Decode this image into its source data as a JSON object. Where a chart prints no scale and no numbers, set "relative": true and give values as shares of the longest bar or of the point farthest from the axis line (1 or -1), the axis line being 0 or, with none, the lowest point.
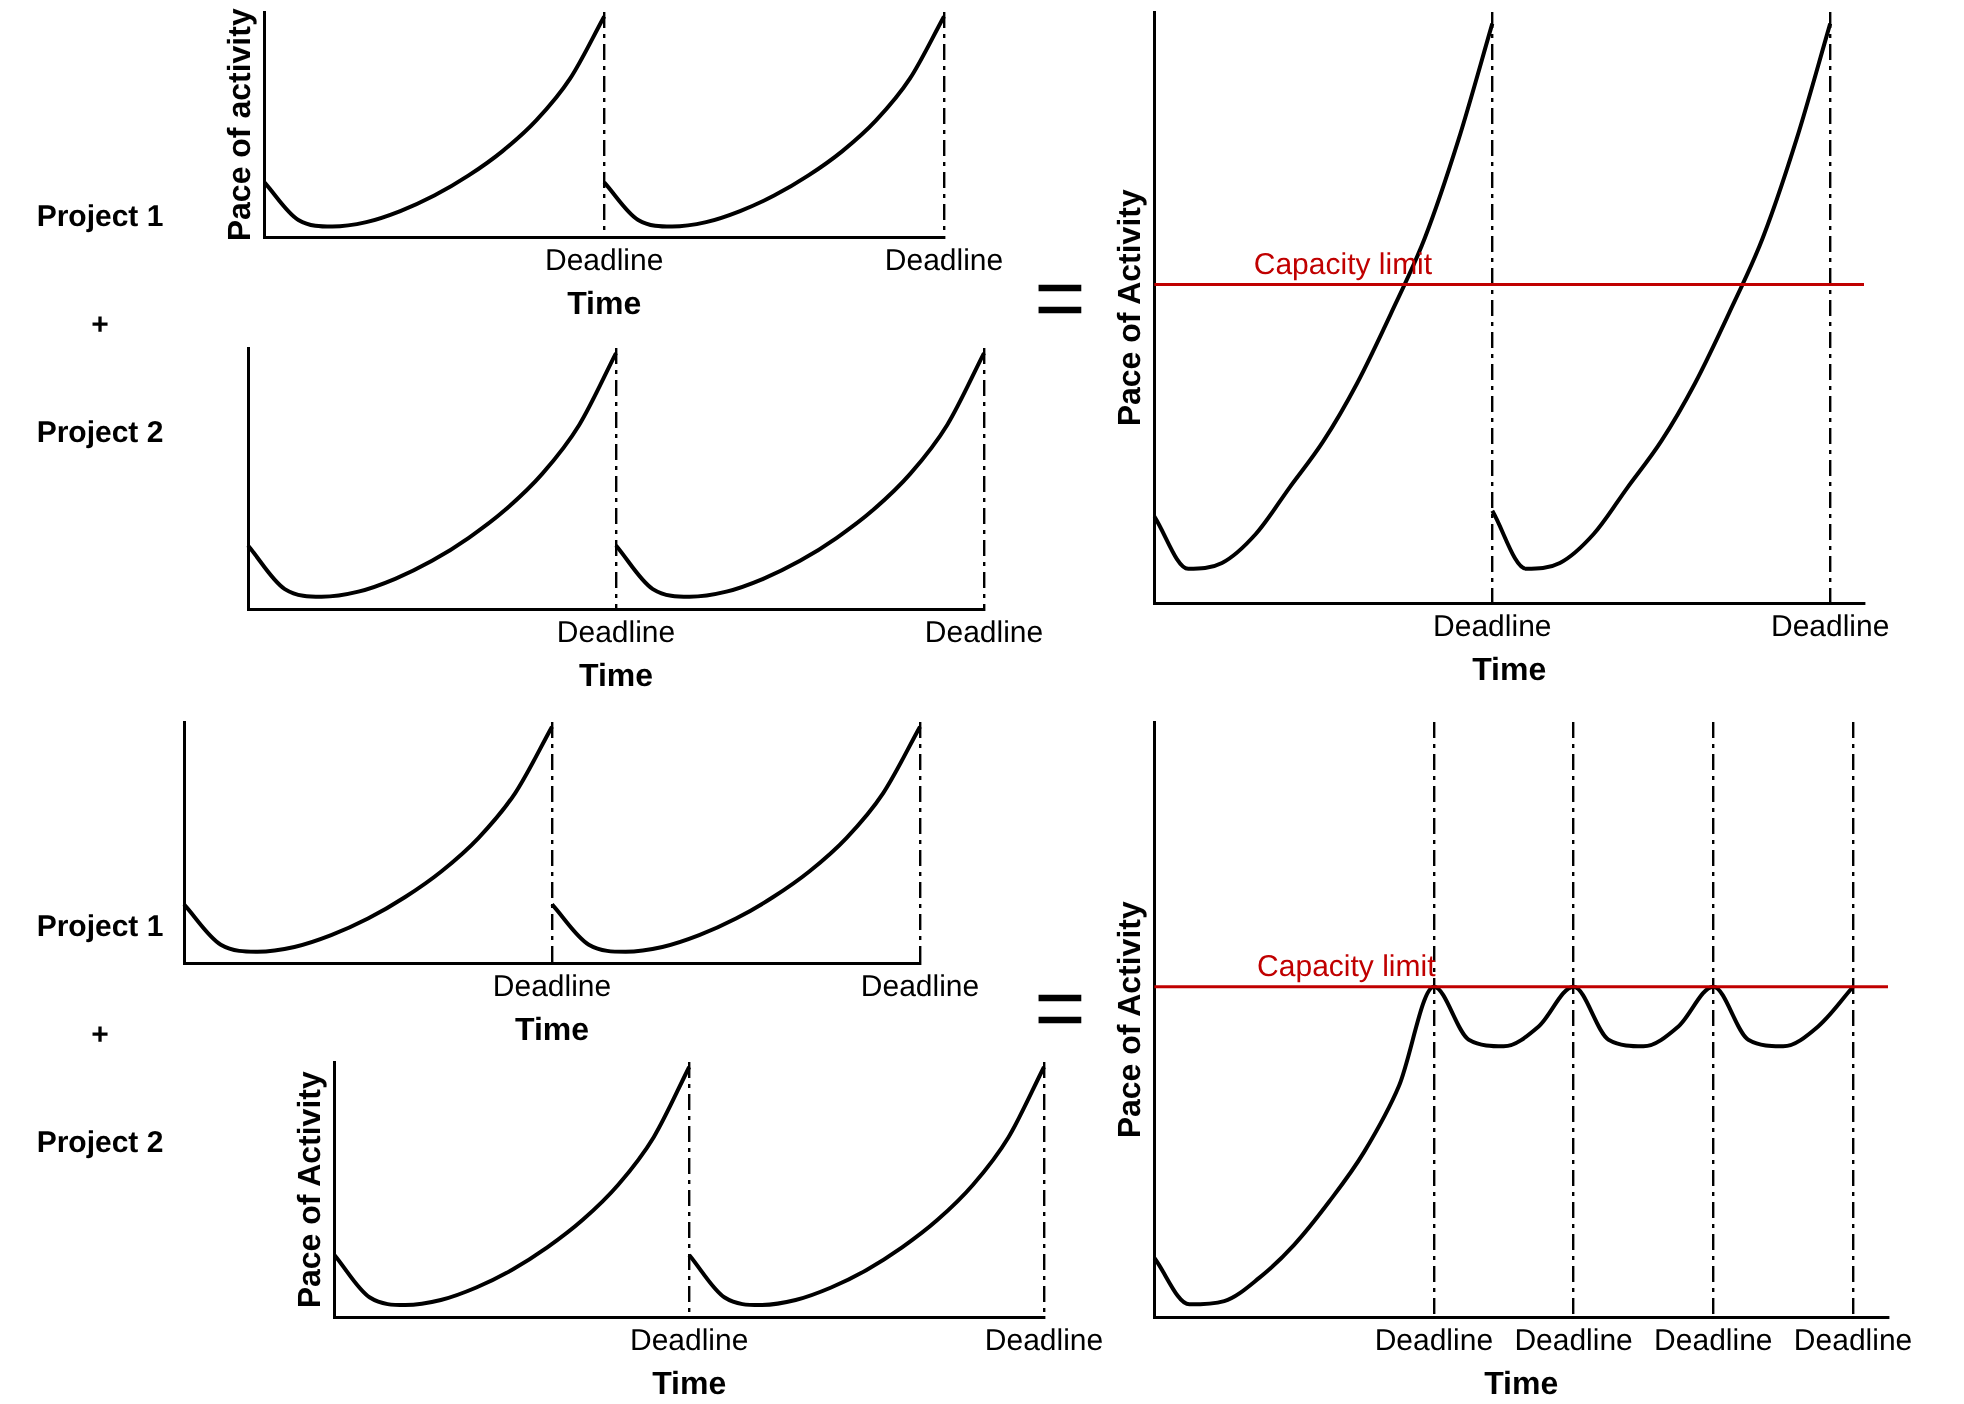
{
  "chart_data": [
    {
      "type": "other",
      "annotations": [
        "Project 1",
        "+",
        "Project 2"
      ]
    },
    {
      "type": "line",
      "relative": true,
      "ylabel": "Pace of activity",
      "xlabel": "Time",
      "legend": false,
      "grid": "x",
      "tick_labels": "x",
      "categories": [
        null,
        null,
        null,
        null,
        null,
        null,
        null,
        null,
        null,
        null,
        "Deadline",
        null,
        null,
        null,
        null,
        null,
        null,
        null,
        null,
        null,
        "Deadline"
      ],
      "series": [
        {
          "color": "#000000",
          "values": [
            0.25,
            0.08,
            0.05,
            0.07,
            0.12,
            0.19,
            0.28,
            0.39,
            0.53,
            0.72,
            1.0,
            null,
            null,
            null,
            null,
            null,
            null,
            null,
            null,
            null,
            null
          ]
        },
        {
          "color": "#000000",
          "values": [
            null,
            null,
            null,
            null,
            null,
            null,
            null,
            null,
            null,
            null,
            0.25,
            0.08,
            0.05,
            0.07,
            0.12,
            0.19,
            0.28,
            0.39,
            0.53,
            0.72,
            1.0
          ]
        }
      ]
    },
    {
      "type": "line",
      "relative": true,
      "xlabel": "Time",
      "legend": false,
      "grid": "x",
      "tick_labels": "x",
      "categories": [
        null,
        null,
        null,
        null,
        null,
        null,
        null,
        null,
        null,
        null,
        "Deadline",
        null,
        null,
        null,
        null,
        null,
        null,
        null,
        null,
        null,
        "Deadline"
      ],
      "series": [
        {
          "color": "#000000",
          "values": [
            0.25,
            0.08,
            0.05,
            0.07,
            0.12,
            0.19,
            0.28,
            0.39,
            0.53,
            0.72,
            1.0,
            null,
            null,
            null,
            null,
            null,
            null,
            null,
            null,
            null,
            null
          ]
        },
        {
          "color": "#000000",
          "values": [
            null,
            null,
            null,
            null,
            null,
            null,
            null,
            null,
            null,
            null,
            0.25,
            0.08,
            0.05,
            0.07,
            0.12,
            0.19,
            0.28,
            0.39,
            0.53,
            0.72,
            1.0
          ]
        }
      ]
    },
    {
      "type": "other",
      "annotations": [
        "="
      ]
    },
    {
      "type": "line",
      "relative": true,
      "ylabel": "Pace of Activity",
      "xlabel": "Time",
      "legend": false,
      "grid": "x",
      "tick_labels": "x",
      "ref_lines": [
        {
          "axis": "y",
          "value": 0.55,
          "label": "Capacity limit",
          "color": "#c00000"
        }
      ],
      "categories": [
        null,
        null,
        null,
        null,
        null,
        null,
        null,
        null,
        null,
        null,
        "Deadline",
        null,
        null,
        null,
        null,
        null,
        null,
        null,
        null,
        null,
        "Deadline",
        null
      ],
      "series": [
        {
          "color": "#000000",
          "values": [
            0.15,
            0.06,
            0.07,
            0.12,
            0.2,
            0.28,
            0.38,
            0.5,
            0.63,
            0.8,
            1.0,
            null,
            null,
            null,
            null,
            null,
            null,
            null,
            null,
            null,
            null,
            null
          ]
        },
        {
          "color": "#000000",
          "values": [
            null,
            null,
            null,
            null,
            null,
            null,
            null,
            null,
            null,
            null,
            0.16,
            0.06,
            0.07,
            0.12,
            0.2,
            0.28,
            0.38,
            0.5,
            0.63,
            0.8,
            1.0,
            null
          ]
        }
      ]
    },
    {
      "type": "other",
      "annotations": [
        "Project 1",
        "+",
        "Project 2"
      ]
    },
    {
      "type": "line",
      "relative": true,
      "xlabel": "Time",
      "legend": false,
      "grid": "x",
      "tick_labels": "x",
      "categories": [
        null,
        null,
        null,
        null,
        null,
        null,
        null,
        null,
        null,
        null,
        "Deadline",
        null,
        null,
        null,
        null,
        null,
        null,
        null,
        null,
        null,
        "Deadline"
      ],
      "series": [
        {
          "color": "#000000",
          "values": [
            0.25,
            0.08,
            0.05,
            0.07,
            0.12,
            0.19,
            0.28,
            0.39,
            0.53,
            0.72,
            1.0,
            null,
            null,
            null,
            null,
            null,
            null,
            null,
            null,
            null,
            null
          ]
        },
        {
          "color": "#000000",
          "values": [
            null,
            null,
            null,
            null,
            null,
            null,
            null,
            null,
            null,
            null,
            0.25,
            0.08,
            0.05,
            0.07,
            0.12,
            0.19,
            0.28,
            0.39,
            0.53,
            0.72,
            1.0
          ]
        }
      ]
    },
    {
      "type": "line",
      "relative": true,
      "ylabel": "Pace of Activity",
      "xlabel": "Time",
      "legend": false,
      "grid": "x",
      "tick_labels": "x",
      "categories": [
        null,
        null,
        null,
        null,
        null,
        null,
        null,
        null,
        null,
        null,
        "Deadline",
        null,
        null,
        null,
        null,
        null,
        null,
        null,
        null,
        null,
        "Deadline"
      ],
      "series": [
        {
          "color": "#000000",
          "values": [
            0.25,
            0.08,
            0.05,
            0.07,
            0.12,
            0.19,
            0.28,
            0.39,
            0.53,
            0.72,
            1.0,
            null,
            null,
            null,
            null,
            null,
            null,
            null,
            null,
            null,
            null
          ]
        },
        {
          "color": "#000000",
          "values": [
            null,
            null,
            null,
            null,
            null,
            null,
            null,
            null,
            null,
            null,
            0.25,
            0.08,
            0.05,
            0.07,
            0.12,
            0.19,
            0.28,
            0.39,
            0.53,
            0.72,
            1.0
          ]
        }
      ]
    },
    {
      "type": "other",
      "annotations": [
        "="
      ]
    },
    {
      "type": "line",
      "relative": true,
      "ylabel": "Pace of Activity",
      "xlabel": "Time",
      "legend": false,
      "grid": "x",
      "tick_labels": "x",
      "ref_lines": [
        {
          "axis": "y",
          "value": 1.0,
          "label": "Capacity limit",
          "color": "#c00000"
        }
      ],
      "categories": [
        null,
        null,
        null,
        null,
        null,
        null,
        null,
        null,
        "Deadline",
        null,
        null,
        null,
        "Deadline",
        null,
        null,
        null,
        "Deadline",
        null,
        null,
        null,
        "Deadline",
        null
      ],
      "series": [
        {
          "color": "#000000",
          "values": [
            0.18,
            0.04,
            0.05,
            0.12,
            0.22,
            0.35,
            0.5,
            0.7,
            1.0,
            0.84,
            0.82,
            0.88,
            1.0,
            0.84,
            0.82,
            0.88,
            1.0,
            0.84,
            0.82,
            0.88,
            1.0,
            null
          ]
        }
      ]
    }
  ]
}
